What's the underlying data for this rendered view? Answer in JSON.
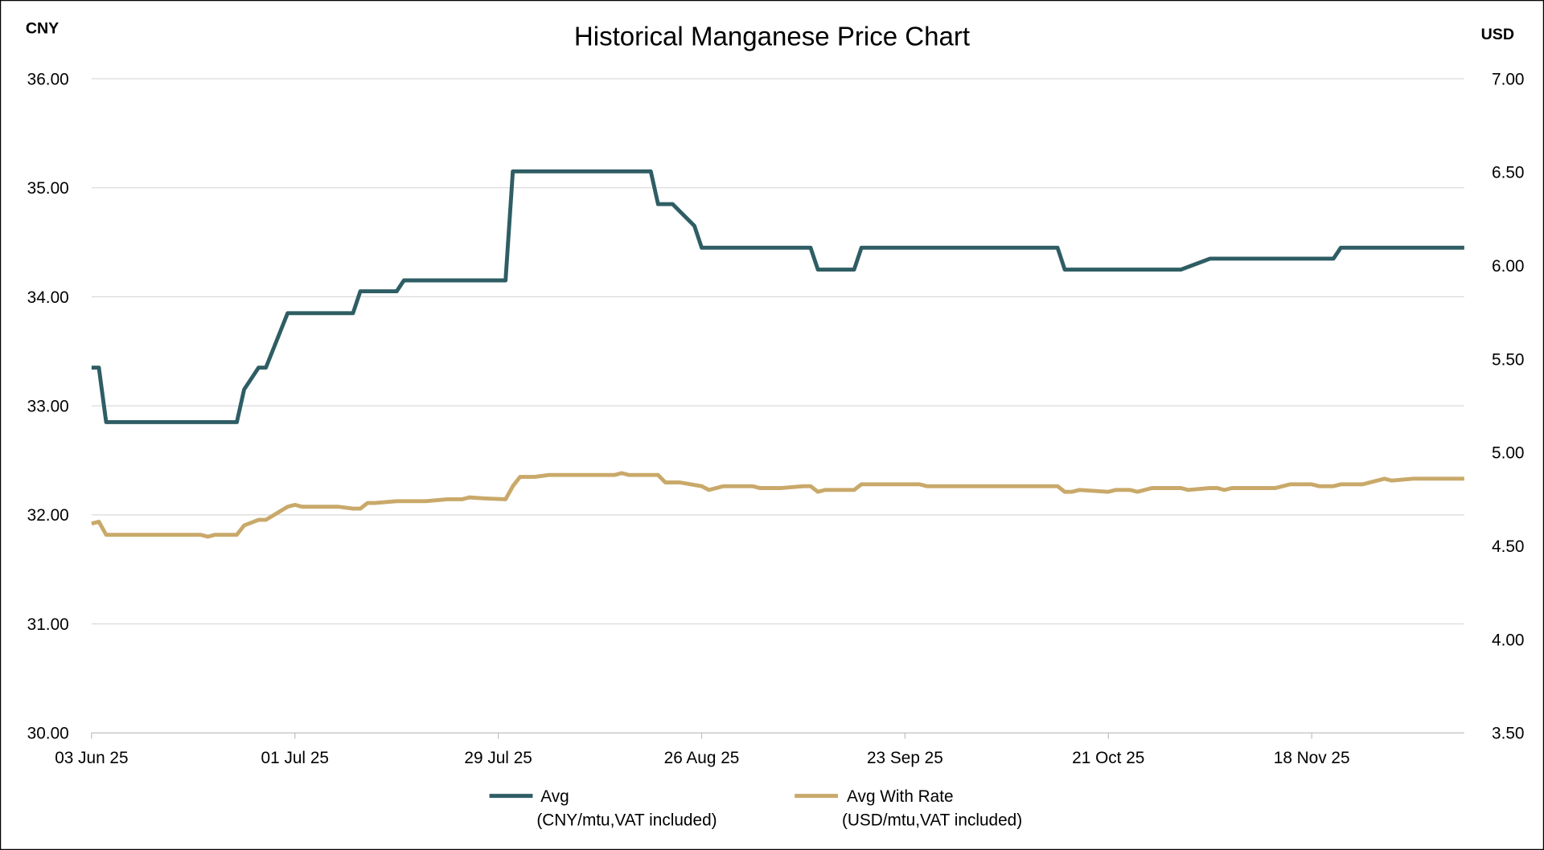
{
  "chart_data": {
    "type": "line",
    "title": "Historical Manganese Price Chart",
    "y_left_label": "CNY",
    "y_right_label": "USD",
    "x_unit": "days since 03 Jun 25",
    "x_range": [
      0,
      189
    ],
    "x_ticks": [
      {
        "day": 0,
        "label": "03 Jun 25"
      },
      {
        "day": 28,
        "label": "01 Jul 25"
      },
      {
        "day": 56,
        "label": "29 Jul 25"
      },
      {
        "day": 84,
        "label": "26 Aug 25"
      },
      {
        "day": 112,
        "label": "23 Sep 25"
      },
      {
        "day": 140,
        "label": "21 Oct 25"
      },
      {
        "day": 168,
        "label": "18 Nov 25"
      }
    ],
    "y_left_range": [
      30,
      36
    ],
    "y_left_ticks": [
      "30.00",
      "31.00",
      "32.00",
      "33.00",
      "34.00",
      "35.00",
      "36.00"
    ],
    "y_right_range": [
      3.5,
      7.0
    ],
    "y_right_ticks": [
      "3.50",
      "4.00",
      "4.50",
      "5.00",
      "5.50",
      "6.00",
      "6.50",
      "7.00"
    ],
    "grid": true,
    "legend_position": "bottom",
    "series": [
      {
        "name": "Avg",
        "unit": "(CNY/mtu,VAT included)",
        "axis": "left",
        "color": "#2f5d64",
        "points": [
          [
            0,
            33.35
          ],
          [
            1,
            33.35
          ],
          [
            2,
            32.85
          ],
          [
            20,
            32.85
          ],
          [
            21,
            33.15
          ],
          [
            23,
            33.35
          ],
          [
            24,
            33.35
          ],
          [
            27,
            33.85
          ],
          [
            36,
            33.85
          ],
          [
            37,
            34.05
          ],
          [
            42,
            34.05
          ],
          [
            43,
            34.15
          ],
          [
            57,
            34.15
          ],
          [
            58,
            35.15
          ],
          [
            77,
            35.15
          ],
          [
            78,
            34.85
          ],
          [
            80,
            34.85
          ],
          [
            83,
            34.65
          ],
          [
            84,
            34.45
          ],
          [
            99,
            34.45
          ],
          [
            100,
            34.25
          ],
          [
            105,
            34.25
          ],
          [
            106,
            34.45
          ],
          [
            133,
            34.45
          ],
          [
            134,
            34.25
          ],
          [
            150,
            34.25
          ],
          [
            154,
            34.35
          ],
          [
            171,
            34.35
          ],
          [
            172,
            34.45
          ],
          [
            189,
            34.45
          ]
        ]
      },
      {
        "name": "Avg With Rate",
        "unit": "(USD/mtu,VAT included)",
        "axis": "right",
        "color": "#c9a96a",
        "points": [
          [
            0,
            4.62
          ],
          [
            1,
            4.63
          ],
          [
            2,
            4.56
          ],
          [
            15,
            4.56
          ],
          [
            16,
            4.55
          ],
          [
            17,
            4.56
          ],
          [
            20,
            4.56
          ],
          [
            21,
            4.61
          ],
          [
            23,
            4.64
          ],
          [
            24,
            4.64
          ],
          [
            27,
            4.71
          ],
          [
            28,
            4.72
          ],
          [
            29,
            4.71
          ],
          [
            34,
            4.71
          ],
          [
            36,
            4.7
          ],
          [
            37,
            4.7
          ],
          [
            38,
            4.73
          ],
          [
            39,
            4.73
          ],
          [
            42,
            4.74
          ],
          [
            46,
            4.74
          ],
          [
            49,
            4.75
          ],
          [
            51,
            4.75
          ],
          [
            52,
            4.76
          ],
          [
            54,
            4.755
          ],
          [
            57,
            4.75
          ],
          [
            58,
            4.82
          ],
          [
            59,
            4.87
          ],
          [
            61,
            4.87
          ],
          [
            63,
            4.88
          ],
          [
            72,
            4.88
          ],
          [
            73,
            4.89
          ],
          [
            74,
            4.88
          ],
          [
            78,
            4.88
          ],
          [
            79,
            4.84
          ],
          [
            81,
            4.84
          ],
          [
            84,
            4.82
          ],
          [
            85,
            4.8
          ],
          [
            86,
            4.81
          ],
          [
            87,
            4.82
          ],
          [
            91,
            4.82
          ],
          [
            92,
            4.81
          ],
          [
            95,
            4.81
          ],
          [
            98,
            4.82
          ],
          [
            99,
            4.82
          ],
          [
            100,
            4.79
          ],
          [
            101,
            4.8
          ],
          [
            105,
            4.8
          ],
          [
            106,
            4.83
          ],
          [
            114,
            4.83
          ],
          [
            115,
            4.82
          ],
          [
            133,
            4.82
          ],
          [
            134,
            4.79
          ],
          [
            135,
            4.79
          ],
          [
            136,
            4.8
          ],
          [
            140,
            4.79
          ],
          [
            141,
            4.8
          ],
          [
            143,
            4.8
          ],
          [
            144,
            4.79
          ],
          [
            146,
            4.81
          ],
          [
            150,
            4.81
          ],
          [
            151,
            4.8
          ],
          [
            154,
            4.81
          ],
          [
            155,
            4.81
          ],
          [
            156,
            4.8
          ],
          [
            157,
            4.81
          ],
          [
            163,
            4.81
          ],
          [
            165,
            4.83
          ],
          [
            168,
            4.83
          ],
          [
            169,
            4.82
          ],
          [
            171,
            4.82
          ],
          [
            172,
            4.83
          ],
          [
            175,
            4.83
          ],
          [
            178,
            4.86
          ],
          [
            179,
            4.85
          ],
          [
            182,
            4.86
          ],
          [
            189,
            4.86
          ]
        ]
      }
    ]
  }
}
